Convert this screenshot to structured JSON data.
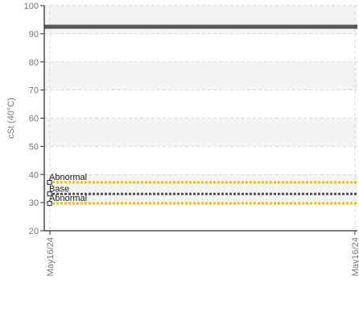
{
  "chart_data": {
    "type": "line",
    "ylabel": "cSt (40°C)",
    "ylim": [
      20,
      100
    ],
    "yticks": [
      20,
      30,
      40,
      50,
      60,
      70,
      80,
      90,
      100
    ],
    "x_tick_labels": [
      "May16/24",
      "May16/24"
    ],
    "grid": true,
    "series": [
      {
        "values": [
          92.5,
          92.5
        ],
        "color": "#555555",
        "style": "solid"
      }
    ],
    "reference_lines": [
      {
        "label": "Abnormal",
        "value": 37.2,
        "color": "#f2c200",
        "style": "dotted"
      },
      {
        "label": "Base",
        "value": 33.1,
        "color": "#555555",
        "style": "dotted"
      },
      {
        "label": "Abnormal",
        "value": 29.7,
        "color": "#f2c200",
        "style": "dotted"
      }
    ]
  }
}
